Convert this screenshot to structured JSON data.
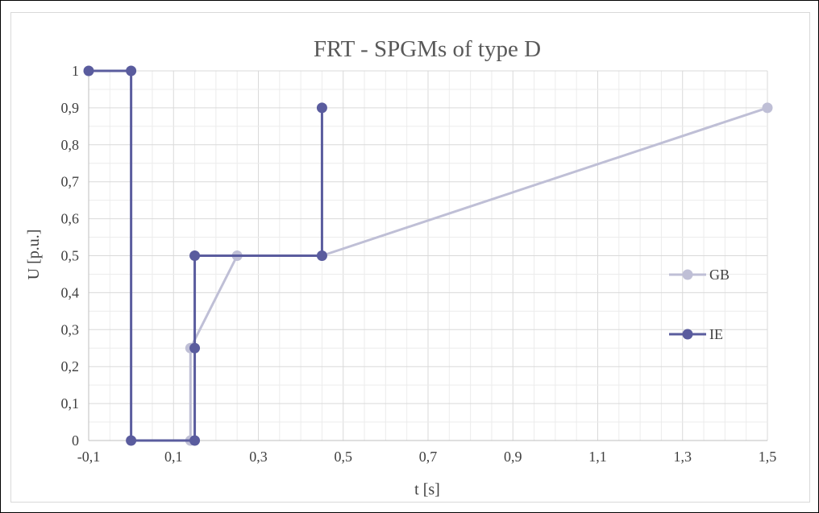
{
  "chart_data": {
    "type": "scatter",
    "title": "FRT - SPGMs of type D",
    "xlabel": "t [s]",
    "ylabel": "U [p.u.]",
    "xlim": [
      -0.1,
      1.5
    ],
    "ylim": [
      0,
      1
    ],
    "x_ticks": [
      -0.1,
      0.1,
      0.3,
      0.5,
      0.7,
      0.9,
      1.1,
      1.3,
      1.5
    ],
    "x_tick_labels": [
      "-0,1",
      "0,1",
      "0,3",
      "0,5",
      "0,7",
      "0,9",
      "1,1",
      "1,3",
      "1,5"
    ],
    "y_ticks": [
      0,
      0.1,
      0.2,
      0.3,
      0.4,
      0.5,
      0.6,
      0.7,
      0.8,
      0.9,
      1
    ],
    "y_tick_labels": [
      "0",
      "0,1",
      "0,2",
      "0,3",
      "0,4",
      "0,5",
      "0,6",
      "0,7",
      "0,8",
      "0,9",
      "1"
    ],
    "grid": true,
    "legend_position": "right",
    "series": [
      {
        "name": "GB",
        "color": "#bfbfd6",
        "points": [
          [
            0.14,
            0
          ],
          [
            0.14,
            0.25
          ],
          [
            0.25,
            0.5
          ],
          [
            0.45,
            0.5
          ],
          [
            1.5,
            0.9
          ]
        ]
      },
      {
        "name": "IE",
        "color": "#5a5c9e",
        "points": [
          [
            -0.1,
            1
          ],
          [
            0,
            1
          ],
          [
            0,
            0
          ],
          [
            0.15,
            0
          ],
          [
            0.15,
            0.25
          ],
          [
            0.15,
            0.5
          ],
          [
            0.45,
            0.5
          ],
          [
            0.45,
            0.9
          ]
        ]
      }
    ]
  }
}
